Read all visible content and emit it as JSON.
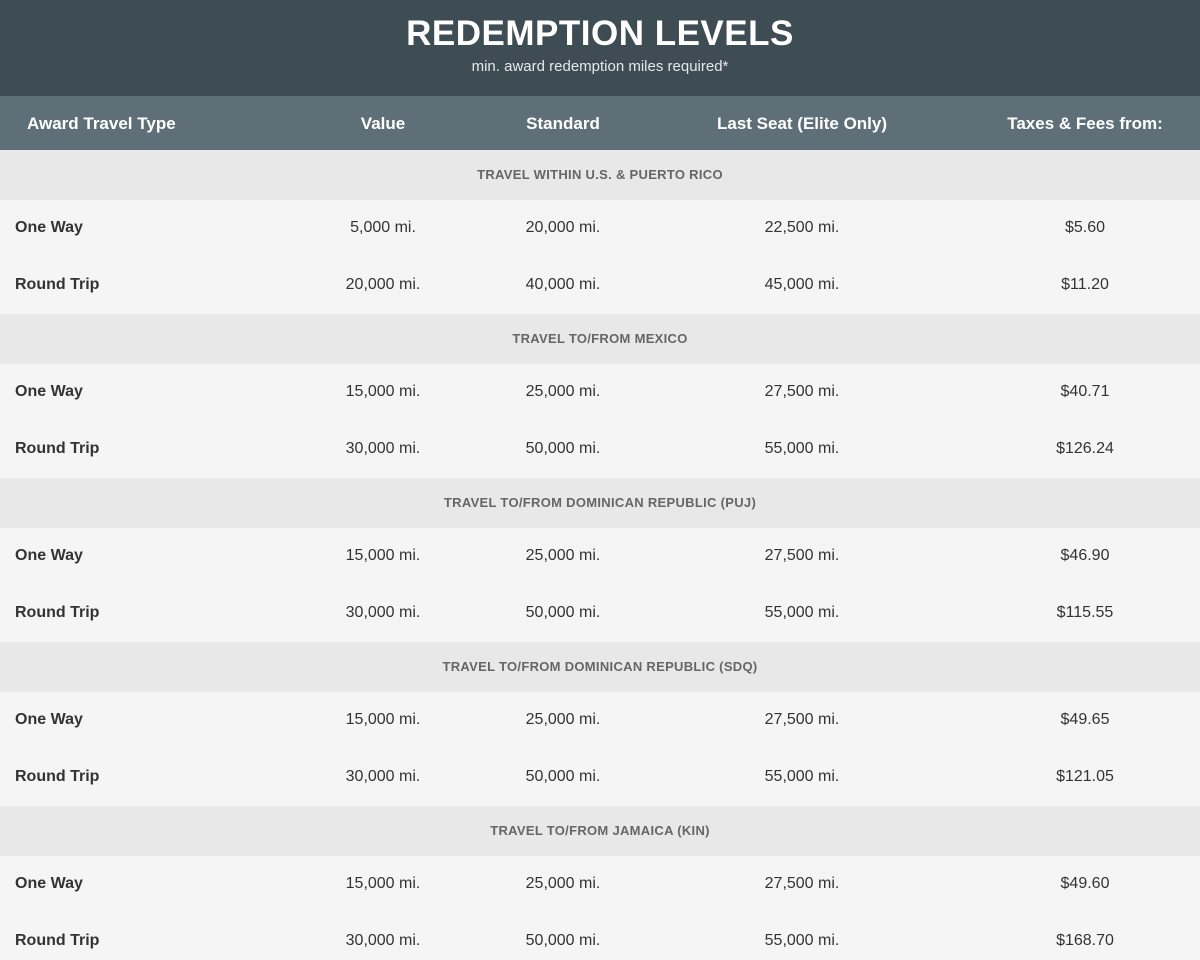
{
  "header": {
    "title": "REDEMPTION LEVELS",
    "subtitle": "min. award redemption miles required*"
  },
  "table": {
    "columns": [
      "Award Travel Type",
      "Value",
      "Standard",
      "Last Seat (Elite Only)",
      "Taxes & Fees from:"
    ],
    "sections": [
      {
        "heading": "TRAVEL WITHIN U.S. & PUERTO RICO",
        "rows": [
          [
            "One Way",
            "5,000 mi.",
            "20,000 mi.",
            "22,500 mi.",
            "$5.60"
          ],
          [
            "Round Trip",
            "20,000 mi.",
            "40,000 mi.",
            "45,000 mi.",
            "$11.20"
          ]
        ]
      },
      {
        "heading": "TRAVEL TO/FROM MEXICO",
        "rows": [
          [
            "One Way",
            "15,000 mi.",
            "25,000 mi.",
            "27,500 mi.",
            "$40.71"
          ],
          [
            "Round Trip",
            "30,000 mi.",
            "50,000 mi.",
            "55,000 mi.",
            "$126.24"
          ]
        ]
      },
      {
        "heading": "TRAVEL TO/FROM DOMINICAN REPUBLIC (PUJ)",
        "rows": [
          [
            "One Way",
            "15,000 mi.",
            "25,000 mi.",
            "27,500 mi.",
            "$46.90"
          ],
          [
            "Round Trip",
            "30,000 mi.",
            "50,000 mi.",
            "55,000 mi.",
            "$115.55"
          ]
        ]
      },
      {
        "heading": "TRAVEL TO/FROM DOMINICAN REPUBLIC (SDQ)",
        "rows": [
          [
            "One Way",
            "15,000 mi.",
            "25,000 mi.",
            "27,500 mi.",
            "$49.65"
          ],
          [
            "Round Trip",
            "30,000 mi.",
            "50,000 mi.",
            "55,000 mi.",
            "$121.05"
          ]
        ]
      },
      {
        "heading": "TRAVEL TO/FROM JAMAICA (KIN)",
        "rows": [
          [
            "One Way",
            "15,000 mi.",
            "25,000 mi.",
            "27,500 mi.",
            "$49.60"
          ],
          [
            "Round Trip",
            "30,000 mi.",
            "50,000 mi.",
            "55,000 mi.",
            "$168.70"
          ]
        ]
      }
    ]
  }
}
